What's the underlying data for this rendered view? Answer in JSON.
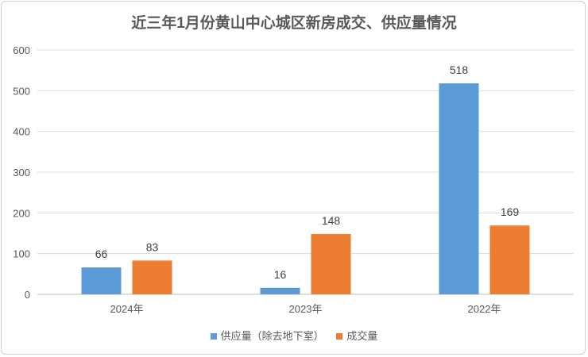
{
  "chart_data": {
    "type": "bar",
    "title": "近三年1月份黄山中心城区新房成交、供应量情况",
    "categories": [
      "2024年",
      "2023年",
      "2022年"
    ],
    "series": [
      {
        "name": "供应量（除去地下室）",
        "values": [
          66,
          16,
          518
        ],
        "color": "#5B9BD5"
      },
      {
        "name": "成交量",
        "values": [
          83,
          148,
          169
        ],
        "color": "#ED7D31"
      }
    ],
    "xlabel": "",
    "ylabel": "",
    "ylim": [
      0,
      600
    ],
    "yticks": [
      0,
      100,
      200,
      300,
      400,
      500,
      600
    ],
    "grid": true,
    "legend_position": "bottom"
  }
}
